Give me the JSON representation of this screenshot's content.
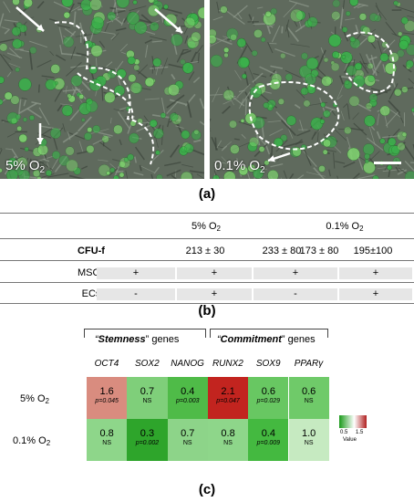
{
  "panel_a": {
    "left_label": "5% O",
    "left_sub": "2",
    "right_label": "0.1% O",
    "right_sub": "2",
    "letter": "(a)"
  },
  "panel_b": {
    "letter": "(b)",
    "group1": "5% O",
    "group1_sub": "2",
    "group2": "0.1% O",
    "group2_sub": "2",
    "row_cfu_label": "CFU-f",
    "cfu_values": [
      "213 ± 30",
      "233 ± 80",
      "173 ± 80",
      "195±100"
    ],
    "row_msc_label": "MSCs",
    "msc_values": [
      "+",
      "+",
      "+",
      "+"
    ],
    "row_ec_label": "ECs",
    "ec_values": [
      "-",
      "+",
      "-",
      "+"
    ]
  },
  "panel_c": {
    "letter": "(c)",
    "group_stemness_prefix": "“",
    "group_stemness_word": "Stemness",
    "group_stemness_suffix": "” genes",
    "group_commit_prefix": "“",
    "group_commit_word": "Commitment",
    "group_commit_suffix": "” genes",
    "legend_title": "Value",
    "legend_ticks": [
      "0.5",
      "1.5"
    ],
    "chart_data": {
      "type": "heatmap",
      "genes": [
        "OCT4",
        "SOX2",
        "NANOG",
        "RUNX2",
        "SOX9",
        "PPARγ"
      ],
      "conditions": [
        {
          "label": "5% O",
          "sub": "2"
        },
        {
          "label": "0.1% O",
          "sub": "2"
        }
      ],
      "values": [
        [
          1.6,
          0.7,
          0.4,
          2.1,
          0.6,
          0.6
        ],
        [
          0.8,
          0.3,
          0.7,
          0.8,
          0.4,
          1.0
        ]
      ],
      "display_values": [
        [
          "1.6",
          "0.7",
          "0.4",
          "2.1",
          "0.6",
          "0.6"
        ],
        [
          "0.8",
          "0.3",
          "0.7",
          "0.8",
          "0.4",
          "1.0"
        ]
      ],
      "pvalues": [
        [
          "p=0.045",
          "NS",
          "p=0.003",
          "p=0.047",
          "p=0.029",
          "NS"
        ],
        [
          "NS",
          "p=0.002",
          "NS",
          "NS",
          "p=0.009",
          "NS"
        ]
      ],
      "colors": [
        [
          "#d98c7f",
          "#7fcf7a",
          "#4fbb48",
          "#c2241f",
          "#68c762",
          "#6fca69"
        ],
        [
          "#8ed68a",
          "#2ea52b",
          "#8dd489",
          "#8ed68a",
          "#44b940",
          "#c6eac1"
        ]
      ]
    }
  }
}
